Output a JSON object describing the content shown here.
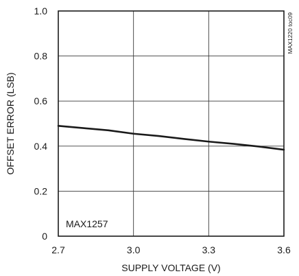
{
  "chart_data": {
    "type": "line",
    "xlabel": "SUPPLY VOLTAGE (V)",
    "ylabel": "OFFSET ERROR (LSB)",
    "xlim": [
      2.7,
      3.6
    ],
    "ylim": [
      0,
      1.0
    ],
    "xticks": [
      2.7,
      3.0,
      3.3,
      3.6
    ],
    "xtick_labels": [
      "2.7",
      "3.0",
      "3.3",
      "3.6"
    ],
    "yticks": [
      0,
      0.2,
      0.4,
      0.6,
      0.8,
      1.0
    ],
    "ytick_labels": [
      "0",
      "0.2",
      "0.4",
      "0.6",
      "0.8",
      "1.0"
    ],
    "grid": true,
    "series": [
      {
        "x": [
          2.7,
          2.8,
          2.9,
          3.0,
          3.1,
          3.2,
          3.3,
          3.4,
          3.5,
          3.6
        ],
        "values": [
          0.49,
          0.48,
          0.47,
          0.455,
          0.445,
          0.432,
          0.42,
          0.41,
          0.398,
          0.384
        ]
      }
    ],
    "annotations": {
      "inset_label": "MAX1257",
      "side_label": "MAX1220 toc09"
    }
  }
}
